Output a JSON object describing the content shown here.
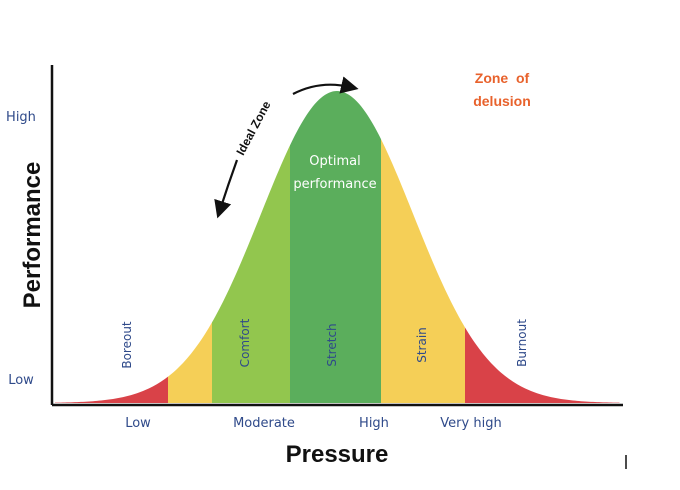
{
  "chart_data": {
    "type": "area",
    "xlabel": "Pressure",
    "ylabel": "Performance",
    "x_ticks": [
      "Low",
      "Moderate",
      "High",
      "Very high"
    ],
    "y_ticks": [
      "High",
      "Low"
    ],
    "zones": [
      {
        "label": "Boreout",
        "color": "#d94248"
      },
      {
        "label": "",
        "color": "#f5cf57"
      },
      {
        "label": "Comfort",
        "color": "#92c64e"
      },
      {
        "label": "Stretch",
        "color": "#5bae5c"
      },
      {
        "label": "Strain",
        "color": "#f5cf57"
      },
      {
        "label": "Burnout",
        "color": "#d94248"
      }
    ],
    "optimal_label_line1": "Optimal",
    "optimal_label_line2": "performance",
    "ideal_zone_label": "Ideal Zone",
    "delusion_line1": "Zone  of",
    "delusion_line2": "delusion"
  },
  "colors": {
    "red": "#d94248",
    "yellow": "#f5cf57",
    "light_green": "#92c64e",
    "dark_green": "#5bae5c",
    "navy_text": "#2f4a8a",
    "orange_text": "#e8622c",
    "axis": "#111111"
  }
}
